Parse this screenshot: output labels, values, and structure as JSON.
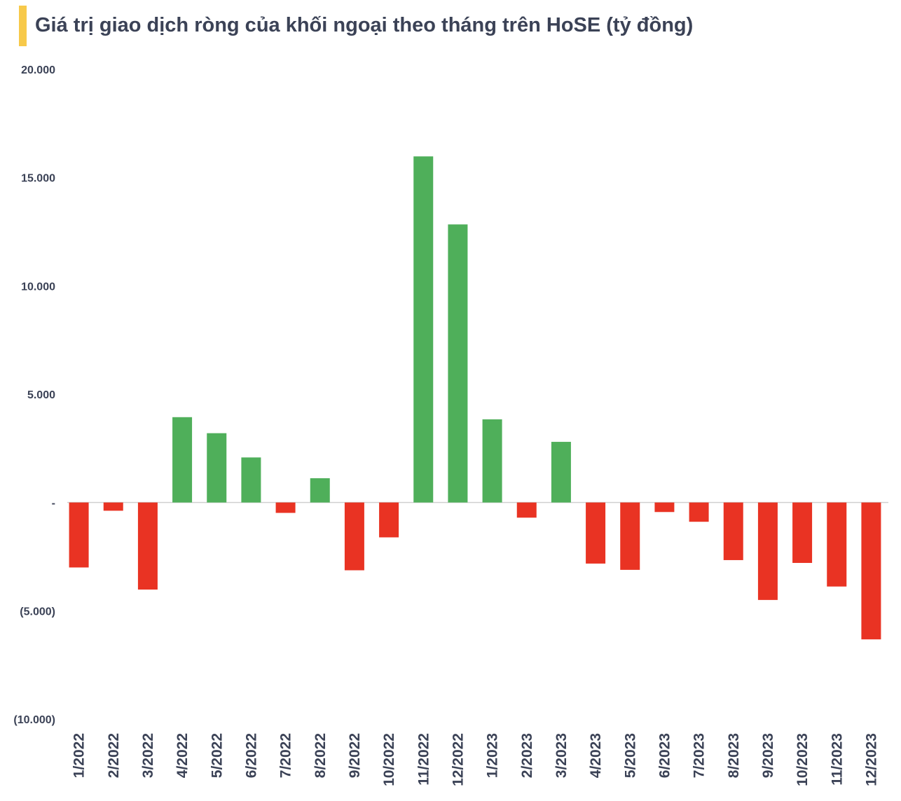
{
  "chart_data": {
    "type": "bar",
    "title": "Giá trị giao dịch ròng của khối ngoại theo tháng trên HoSE (tỷ đồng)",
    "xlabel": "",
    "ylabel": "",
    "ylim": [
      -10000,
      20000
    ],
    "yticks": [
      {
        "value": 20000,
        "label": "20.000"
      },
      {
        "value": 15000,
        "label": "15.000"
      },
      {
        "value": 10000,
        "label": "10.000"
      },
      {
        "value": 5000,
        "label": "5.000"
      },
      {
        "value": 0,
        "label": "-"
      },
      {
        "value": -5000,
        "label": "(5.000)"
      },
      {
        "value": -10000,
        "label": "(10.000)"
      }
    ],
    "grid": false,
    "legend": "none",
    "categories": [
      "1/2022",
      "2/2022",
      "3/2022",
      "4/2022",
      "5/2022",
      "6/2022",
      "7/2022",
      "8/2022",
      "9/2022",
      "10/2022",
      "11/2022",
      "12/2022",
      "1/2023",
      "2/2023",
      "3/2023",
      "4/2023",
      "5/2023",
      "6/2023",
      "7/2023",
      "8/2023",
      "9/2023",
      "10/2023",
      "11/2023",
      "12/2023"
    ],
    "values": [
      -3000,
      -380,
      -4020,
      3940,
      3200,
      2080,
      -480,
      1120,
      -3130,
      -1610,
      15980,
      12840,
      3840,
      -700,
      2800,
      -2820,
      -3110,
      -440,
      -890,
      -2660,
      -4500,
      -2790,
      -3880,
      -6320
    ],
    "colors": {
      "positive": "#4faf5a",
      "negative": "#e93323",
      "axis": "#d0d0d0",
      "text": "#3b4256",
      "title_accent": "#f7c94a"
    }
  }
}
